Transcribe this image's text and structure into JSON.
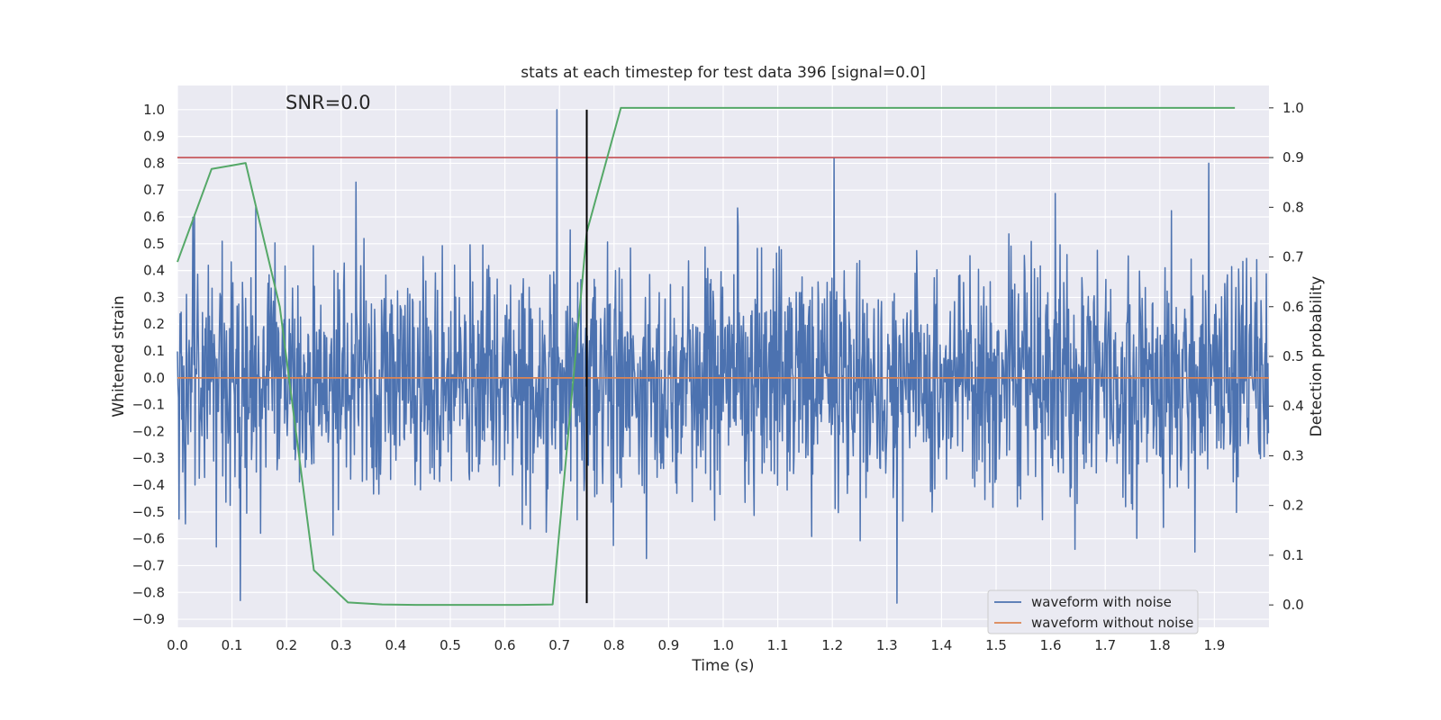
{
  "chart_data": {
    "type": "line",
    "title": "stats at each timestep for test data 396 [signal=0.0]",
    "annotation": "SNR=0.0",
    "xlabel": "Time (s)",
    "ylabel": "Whitened strain",
    "y2label": "Detection probability",
    "xlim": [
      0.0,
      2.0
    ],
    "ylim": [
      -0.93,
      1.09
    ],
    "y2lim": [
      -0.045,
      1.045
    ],
    "x_ticks": [
      "0.0",
      "0.1",
      "0.2",
      "0.3",
      "0.4",
      "0.5",
      "0.6",
      "0.7",
      "0.8",
      "0.9",
      "1.0",
      "1.1",
      "1.2",
      "1.3",
      "1.4",
      "1.5",
      "1.6",
      "1.7",
      "1.8",
      "1.9"
    ],
    "y_ticks": [
      "1.0",
      "0.9",
      "0.8",
      "0.7",
      "0.6",
      "0.5",
      "0.4",
      "0.3",
      "0.2",
      "0.1",
      "0.0",
      "-0.1",
      "-0.2",
      "-0.3",
      "-0.4",
      "-0.5",
      "-0.6",
      "-0.7",
      "-0.8",
      "-0.9"
    ],
    "y2_ticks": [
      "1.0",
      "0.9",
      "0.8",
      "0.7",
      "0.6",
      "0.5",
      "0.4",
      "0.3",
      "0.2",
      "0.1",
      "0.0"
    ],
    "grid": true,
    "legend_position": "lower-right",
    "colors": {
      "noise": "#4c72b0",
      "clean": "#dd8452",
      "probability": "#55a868",
      "threshold": "#c44e52",
      "marker": "#000000",
      "background": "#eaeaf2",
      "grid": "#ffffff"
    },
    "series": [
      {
        "name": "waveform with noise",
        "axis": "left",
        "sample_rate_hz": 1024,
        "duration_s": 2.0,
        "std": 0.22,
        "min": -0.84,
        "max": 1.0,
        "notable_peaks": [
          {
            "x": 0.695,
            "y": 1.0
          },
          {
            "x": 1.203,
            "y": 0.82
          },
          {
            "x": 1.89,
            "y": 0.8
          },
          {
            "x": 0.115,
            "y": -0.83
          },
          {
            "x": 1.318,
            "y": -0.84
          }
        ]
      },
      {
        "name": "waveform without noise",
        "axis": "left",
        "x": [
          0.0,
          2.0
        ],
        "y": [
          0.0,
          0.0
        ]
      },
      {
        "axis": "right",
        "x": [
          0.0,
          0.0625,
          0.125,
          0.1875,
          0.25,
          0.3125,
          0.375,
          0.4375,
          0.5,
          0.5625,
          0.625,
          0.6875,
          0.75,
          0.8125,
          0.875,
          0.9375,
          1.0,
          1.0625,
          1.125,
          1.1875,
          1.25,
          1.3125,
          1.375,
          1.4375,
          1.5,
          1.5625,
          1.625,
          1.6875,
          1.75,
          1.8125,
          1.875,
          1.9375
        ],
        "y": [
          0.69,
          0.877,
          0.889,
          0.6,
          0.07,
          0.005,
          0.001,
          0.0,
          0.0,
          0.0,
          0.0,
          0.001,
          0.75,
          1.0,
          1.0,
          1.0,
          1.0,
          1.0,
          1.0,
          1.0,
          1.0,
          1.0,
          1.0,
          1.0,
          1.0,
          1.0,
          1.0,
          1.0,
          1.0,
          1.0,
          1.0,
          1.0
        ]
      },
      {
        "axis": "right",
        "y_constant": 0.9
      },
      {
        "axis": "left",
        "x_constant": 0.75,
        "y_range": [
          -0.84,
          1.0
        ]
      }
    ]
  }
}
